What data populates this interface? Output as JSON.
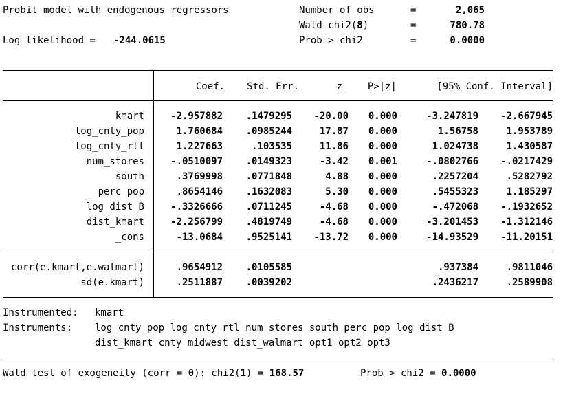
{
  "header": {
    "title": "Probit model with endogenous regressors",
    "log_likelihood_label": "Log likelihood =",
    "log_likelihood_value": "-244.0615",
    "stats": [
      {
        "label": "Number of obs",
        "eq": "=",
        "value": "2,065",
        "suffix": ""
      },
      {
        "label": "Wald chi2(",
        "suffix_bold": "8",
        "label_end": ")",
        "eq": "=",
        "value": "780.78"
      },
      {
        "label": "Prob > chi2",
        "eq": "=",
        "value": "0.0000"
      }
    ]
  },
  "table": {
    "columns": [
      "Coef.",
      "Std. Err.",
      "z",
      "P>|z|",
      "[95% Conf. Interval]"
    ],
    "rows": [
      {
        "name": "kmart",
        "coef": "-2.957882",
        "se": ".1479295",
        "z": "-20.00",
        "p": "0.000",
        "lo": "-3.247819",
        "hi": "-2.667945"
      },
      {
        "name": "log_cnty_pop",
        "coef": "1.760684",
        "se": ".0985244",
        "z": "17.87",
        "p": "0.000",
        "lo": "1.56758",
        "hi": "1.953789"
      },
      {
        "name": "log_cnty_rtl",
        "coef": "1.227663",
        "se": ".103535",
        "z": "11.86",
        "p": "0.000",
        "lo": "1.024738",
        "hi": "1.430587"
      },
      {
        "name": "num_stores",
        "coef": "-.0510097",
        "se": ".0149323",
        "z": "-3.42",
        "p": "0.001",
        "lo": "-.0802766",
        "hi": "-.0217429"
      },
      {
        "name": "south",
        "coef": ".3769998",
        "se": ".0771848",
        "z": "4.88",
        "p": "0.000",
        "lo": ".2257204",
        "hi": ".5282792"
      },
      {
        "name": "perc_pop",
        "coef": ".8654146",
        "se": ".1632083",
        "z": "5.30",
        "p": "0.000",
        "lo": ".5455323",
        "hi": "1.185297"
      },
      {
        "name": "log_dist_B",
        "coef": "-.3326666",
        "se": ".0711245",
        "z": "-4.68",
        "p": "0.000",
        "lo": "-.472068",
        "hi": "-.1932652"
      },
      {
        "name": "dist_kmart",
        "coef": "-2.256799",
        "se": ".4819749",
        "z": "-4.68",
        "p": "0.000",
        "lo": "-3.201453",
        "hi": "-1.312146"
      },
      {
        "name": "_cons",
        "coef": "-13.0684",
        "se": ".9525141",
        "z": "-13.72",
        "p": "0.000",
        "lo": "-14.93529",
        "hi": "-11.20151"
      }
    ],
    "aux_rows": [
      {
        "name": "corr(e.kmart,e.walmart)",
        "coef": ".9654912",
        "se": ".0105585",
        "lo": ".937384",
        "hi": ".9811046"
      },
      {
        "name": "sd(e.kmart)",
        "coef": ".2511887",
        "se": ".0039202",
        "lo": ".2436217",
        "hi": ".2589908"
      }
    ]
  },
  "footer": {
    "instrumented_label": "Instrumented:",
    "instrumented_value": "kmart",
    "instruments_label": "Instruments:",
    "instruments_line1": "log_cnty_pop log_cnty_rtl num_stores south perc_pop log_dist_B",
    "instruments_line2": "dist_kmart cnty midwest dist_walmart opt1 opt2 opt3",
    "wald_prefix": "Wald test of exogeneity (corr = 0): chi2(",
    "wald_df": "1",
    "wald_mid": ") = ",
    "wald_value": "168.57",
    "prob_label": "Prob > chi2 = ",
    "prob_value": "0.0000"
  }
}
